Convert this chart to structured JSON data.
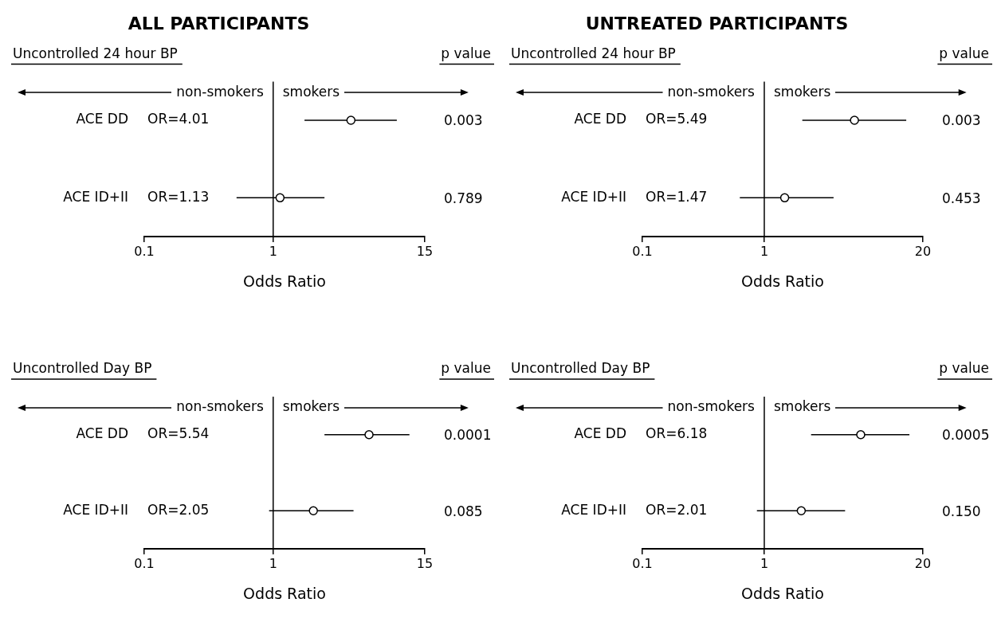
{
  "chart_data": [
    {
      "type": "scatter",
      "title": "ALL PARTICIPANTS",
      "subtitle": "Uncontrolled 24 hour BP",
      "xlabel": "Odds Ratio",
      "categories": [
        "ACE DD",
        "ACE ID+II"
      ],
      "orientation": "horizontal",
      "values": [
        4.01,
        1.13
      ],
      "errors": [
        [
          1.75,
          9.1
        ],
        [
          0.52,
          2.5
        ]
      ],
      "color": "#000000",
      "marker": "circle",
      "log": "x",
      "xlim": [
        0.1,
        15
      ],
      "xticks": [
        0.1,
        1,
        15
      ],
      "ref_lines": [
        {
          "axis": "x",
          "value": 1
        }
      ],
      "annotations": [
        "p value",
        "non-smokers",
        "smokers",
        "OR=4.01",
        "OR=1.13",
        "0.003",
        "0.789"
      ]
    },
    {
      "type": "scatter",
      "title": "UNTREATED PARTICIPANTS",
      "subtitle": "Uncontrolled 24 hour BP",
      "xlabel": "Odds Ratio",
      "categories": [
        "ACE DD",
        "ACE ID+II"
      ],
      "orientation": "horizontal",
      "values": [
        5.49,
        1.47
      ],
      "errors": [
        [
          2.05,
          14.6
        ],
        [
          0.63,
          3.7
        ]
      ],
      "color": "#000000",
      "marker": "circle",
      "log": "x",
      "xlim": [
        0.1,
        20
      ],
      "xticks": [
        0.1,
        1,
        20
      ],
      "ref_lines": [
        {
          "axis": "x",
          "value": 1
        }
      ],
      "annotations": [
        "p value",
        "non-smokers",
        "smokers",
        "OR=5.49",
        "OR=1.47",
        "0.003",
        "0.453"
      ]
    },
    {
      "type": "scatter",
      "subtitle": "Uncontrolled Day BP",
      "xlabel": "Odds Ratio",
      "categories": [
        "ACE DD",
        "ACE ID+II"
      ],
      "orientation": "horizontal",
      "values": [
        5.54,
        2.05
      ],
      "errors": [
        [
          2.5,
          11.4
        ],
        [
          0.93,
          4.2
        ]
      ],
      "color": "#000000",
      "marker": "circle",
      "log": "x",
      "xlim": [
        0.1,
        15
      ],
      "xticks": [
        0.1,
        1,
        15
      ],
      "ref_lines": [
        {
          "axis": "x",
          "value": 1
        }
      ],
      "annotations": [
        "p value",
        "non-smokers",
        "smokers",
        "OR=5.54",
        "OR=2.05",
        "0.0001",
        "0.085"
      ]
    },
    {
      "type": "scatter",
      "subtitle": "Uncontrolled Day BP",
      "xlabel": "Odds Ratio",
      "categories": [
        "ACE DD",
        "ACE ID+II"
      ],
      "orientation": "horizontal",
      "values": [
        6.18,
        2.01
      ],
      "errors": [
        [
          2.42,
          15.5
        ],
        [
          0.87,
          4.6
        ]
      ],
      "color": "#000000",
      "marker": "circle",
      "log": "x",
      "xlim": [
        0.1,
        20
      ],
      "xticks": [
        0.1,
        1,
        20
      ],
      "ref_lines": [
        {
          "axis": "x",
          "value": 1
        }
      ],
      "annotations": [
        "p value",
        "non-smokers",
        "smokers",
        "OR=6.18",
        "OR=2.01",
        "0.0005",
        "0.150"
      ]
    }
  ]
}
